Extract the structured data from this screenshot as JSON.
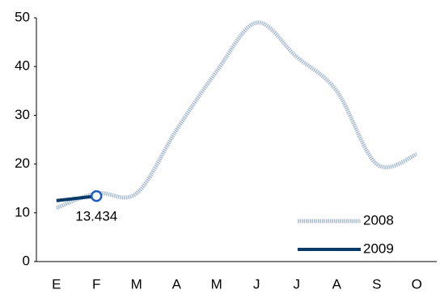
{
  "chart_data": {
    "type": "line",
    "categories": [
      "E",
      "F",
      "M",
      "A",
      "M",
      "J",
      "J",
      "A",
      "S",
      "O"
    ],
    "series": [
      {
        "name": "2008",
        "color": "#a9bbcf",
        "values": [
          11,
          14,
          14,
          27,
          39,
          49,
          42,
          35,
          20,
          22
        ]
      },
      {
        "name": "2009",
        "color": "#0c3a66",
        "values": [
          12.5,
          13.434,
          null,
          null,
          null,
          null,
          null,
          null,
          null,
          null
        ]
      }
    ],
    "ylim": [
      0,
      50
    ],
    "yticks": [
      0,
      10,
      20,
      30,
      40,
      50
    ],
    "grid": false,
    "legend": "bottom-right"
  }
}
